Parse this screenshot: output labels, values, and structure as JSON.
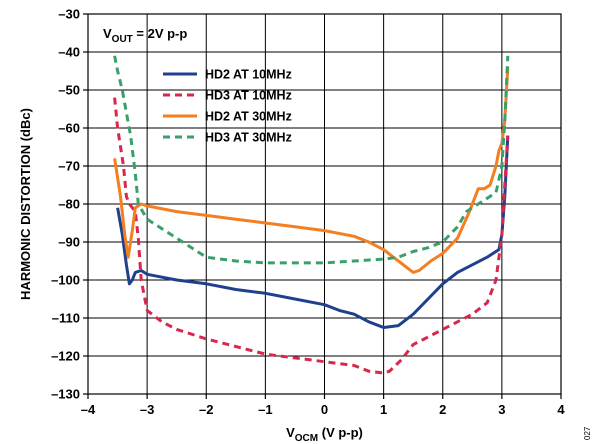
{
  "figure_id": "027",
  "chart_data": {
    "type": "line",
    "annotation": {
      "main": "V",
      "sub": "OUT",
      "rest": " = 2V p-p"
    },
    "xlabel": {
      "main": "V",
      "sub": "OCM",
      "rest": " (V p-p)"
    },
    "ylabel": "HARMONIC DISTORTION (dBc)",
    "xlim": [
      -4,
      4
    ],
    "ylim": [
      -130,
      -30
    ],
    "xticks": [
      -4,
      -3,
      -2,
      -1,
      0,
      1,
      2,
      3,
      4
    ],
    "yticks": [
      -30,
      -40,
      -50,
      -60,
      -70,
      -80,
      -90,
      -100,
      -110,
      -120,
      -130
    ],
    "grid": true,
    "legend_position": "top-left",
    "series": [
      {
        "name": "HD2 AT 10MHz",
        "color": "#1f3f8f",
        "dash": "solid",
        "points": [
          [
            -3.5,
            -81
          ],
          [
            -3.42,
            -88
          ],
          [
            -3.35,
            -96
          ],
          [
            -3.3,
            -101
          ],
          [
            -3.25,
            -100
          ],
          [
            -3.2,
            -98
          ],
          [
            -3.1,
            -97.5
          ],
          [
            -3.0,
            -98.5
          ],
          [
            -2.5,
            -100
          ],
          [
            -2,
            -101
          ],
          [
            -1.5,
            -102.5
          ],
          [
            -1,
            -103.5
          ],
          [
            -0.5,
            -105
          ],
          [
            0,
            -106.5
          ],
          [
            0.25,
            -108
          ],
          [
            0.5,
            -109
          ],
          [
            0.75,
            -111
          ],
          [
            1.0,
            -112.5
          ],
          [
            1.25,
            -112
          ],
          [
            1.5,
            -109
          ],
          [
            1.75,
            -105
          ],
          [
            2.0,
            -101
          ],
          [
            2.25,
            -98
          ],
          [
            2.5,
            -96
          ],
          [
            2.75,
            -94
          ],
          [
            2.95,
            -92
          ],
          [
            3.0,
            -88
          ],
          [
            3.05,
            -78
          ],
          [
            3.1,
            -62
          ]
        ]
      },
      {
        "name": "HD3 AT 10MHz",
        "color": "#d9274b",
        "dash": "dashed",
        "points": [
          [
            -3.55,
            -52
          ],
          [
            -3.5,
            -60
          ],
          [
            -3.4,
            -70
          ],
          [
            -3.35,
            -78
          ],
          [
            -3.3,
            -80
          ],
          [
            -3.2,
            -82
          ],
          [
            -3.15,
            -89
          ],
          [
            -3.1,
            -100
          ],
          [
            -3.0,
            -108
          ],
          [
            -2.75,
            -111
          ],
          [
            -2.5,
            -113
          ],
          [
            -2,
            -115.5
          ],
          [
            -1.5,
            -117.5
          ],
          [
            -1,
            -119.5
          ],
          [
            -0.5,
            -120.5
          ],
          [
            0,
            -121.5
          ],
          [
            0.5,
            -122.5
          ],
          [
            0.75,
            -124
          ],
          [
            1.0,
            -124.5
          ],
          [
            1.1,
            -124
          ],
          [
            1.3,
            -121
          ],
          [
            1.5,
            -117
          ],
          [
            2.0,
            -113
          ],
          [
            2.5,
            -109
          ],
          [
            2.75,
            -106
          ],
          [
            2.9,
            -100
          ],
          [
            3.0,
            -88
          ],
          [
            3.05,
            -75
          ],
          [
            3.1,
            -62
          ]
        ]
      },
      {
        "name": "HD2 AT 30MHz",
        "color": "#f47f20",
        "dash": "solid",
        "points": [
          [
            -3.55,
            -68
          ],
          [
            -3.45,
            -78
          ],
          [
            -3.38,
            -88
          ],
          [
            -3.32,
            -94
          ],
          [
            -3.25,
            -87
          ],
          [
            -3.2,
            -81
          ],
          [
            -3.1,
            -80
          ],
          [
            -3.0,
            -80.5
          ],
          [
            -2.5,
            -82
          ],
          [
            -2,
            -83
          ],
          [
            -1.5,
            -84
          ],
          [
            -1,
            -85
          ],
          [
            -0.5,
            -86
          ],
          [
            0,
            -87
          ],
          [
            0.5,
            -88.5
          ],
          [
            0.75,
            -90
          ],
          [
            1.0,
            -92
          ],
          [
            1.25,
            -95
          ],
          [
            1.5,
            -98
          ],
          [
            1.6,
            -97.5
          ],
          [
            1.8,
            -95
          ],
          [
            2.0,
            -93
          ],
          [
            2.25,
            -89
          ],
          [
            2.45,
            -82
          ],
          [
            2.55,
            -78
          ],
          [
            2.6,
            -76
          ],
          [
            2.7,
            -76
          ],
          [
            2.8,
            -75
          ],
          [
            2.9,
            -70
          ],
          [
            2.95,
            -66
          ],
          [
            3.0,
            -64
          ],
          [
            3.05,
            -58
          ],
          [
            3.1,
            -44
          ]
        ]
      },
      {
        "name": "HD3 AT 30MHz",
        "color": "#3aa06b",
        "dash": "dashed",
        "points": [
          [
            -3.55,
            -41
          ],
          [
            -3.5,
            -45
          ],
          [
            -3.42,
            -50
          ],
          [
            -3.35,
            -56
          ],
          [
            -3.28,
            -62
          ],
          [
            -3.2,
            -72
          ],
          [
            -3.15,
            -80
          ],
          [
            -3.0,
            -84
          ],
          [
            -2.5,
            -89
          ],
          [
            -2,
            -94
          ],
          [
            -1.5,
            -95
          ],
          [
            -1,
            -95.5
          ],
          [
            -0.5,
            -95.5
          ],
          [
            0,
            -95.5
          ],
          [
            0.5,
            -95
          ],
          [
            1.0,
            -94.5
          ],
          [
            1.25,
            -94
          ],
          [
            1.5,
            -92.5
          ],
          [
            1.75,
            -91.5
          ],
          [
            2.0,
            -90
          ],
          [
            2.25,
            -86
          ],
          [
            2.4,
            -82
          ],
          [
            2.6,
            -80
          ],
          [
            2.9,
            -77
          ],
          [
            3.0,
            -70
          ],
          [
            3.05,
            -58
          ],
          [
            3.1,
            -41
          ]
        ]
      }
    ]
  }
}
